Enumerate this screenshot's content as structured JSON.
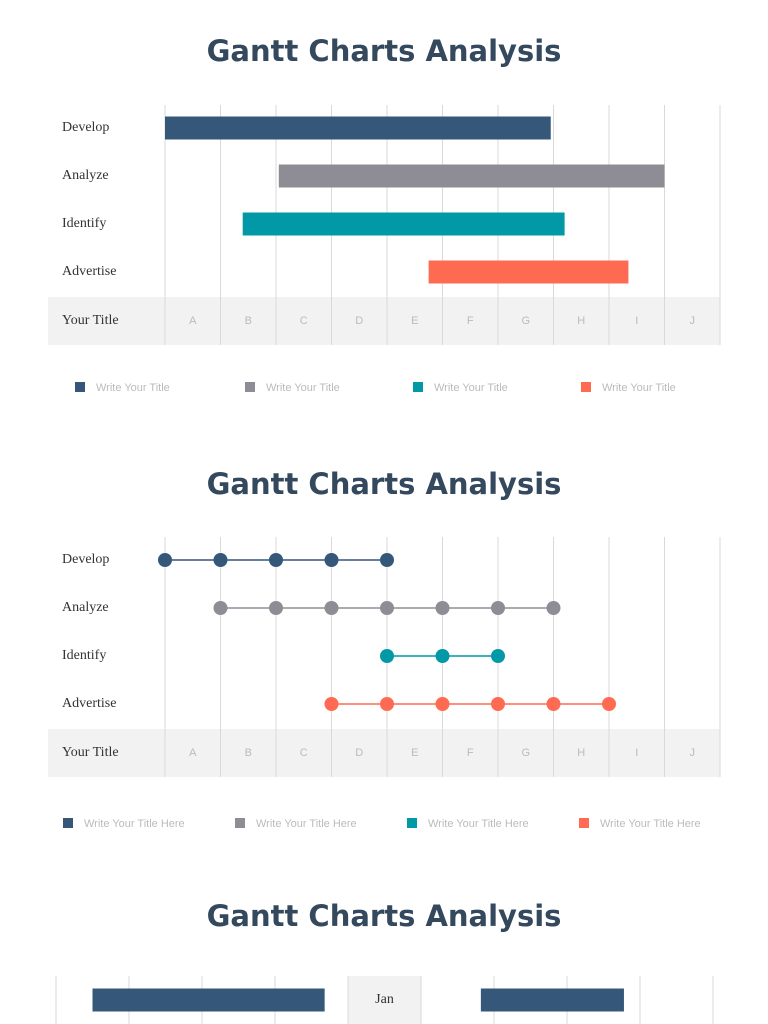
{
  "chart_data": [
    {
      "type": "gantt",
      "title": "Gantt Charts Analysis",
      "categories": [
        "A",
        "B",
        "C",
        "D",
        "E",
        "F",
        "G",
        "H",
        "I",
        "J"
      ],
      "xlim": [
        0,
        10
      ],
      "xticks": [
        0,
        1,
        2,
        3,
        4,
        5,
        6,
        7,
        8,
        9,
        10
      ],
      "footer_label": "Your Title",
      "tasks": [
        {
          "name": "Develop",
          "color": "#34577a",
          "start": 0,
          "end": 6.95
        },
        {
          "name": "Analyze",
          "color": "#8e8d96",
          "start": 2.05,
          "end": 9
        },
        {
          "name": "Identify",
          "color": "#0099a5",
          "start": 1.4,
          "end": 7.2
        },
        {
          "name": "Advertise",
          "color": "#ff6a52",
          "start": 4.75,
          "end": 8.35
        }
      ],
      "legend": [
        {
          "label": "Write Your Title",
          "color": "#34577a"
        },
        {
          "label": "Write Your Title",
          "color": "#8e8d96"
        },
        {
          "label": "Write Your Title",
          "color": "#0099a5"
        },
        {
          "label": "Write Your Title",
          "color": "#ff6a52"
        }
      ]
    },
    {
      "type": "dot-gantt",
      "title": "Gantt Charts Analysis",
      "categories": [
        "A",
        "B",
        "C",
        "D",
        "E",
        "F",
        "G",
        "H",
        "I",
        "J"
      ],
      "xlim": [
        0,
        10
      ],
      "xticks": [
        0,
        1,
        2,
        3,
        4,
        5,
        6,
        7,
        8,
        9,
        10
      ],
      "footer_label": "Your Title",
      "tasks": [
        {
          "name": "Develop",
          "color": "#34577a",
          "x": [
            0,
            1,
            2,
            3,
            4
          ]
        },
        {
          "name": "Analyze",
          "color": "#8e8d96",
          "x": [
            1,
            2,
            3,
            4,
            5,
            6,
            7
          ]
        },
        {
          "name": "Identify",
          "color": "#0099a5",
          "x": [
            4,
            5,
            6
          ]
        },
        {
          "name": "Advertise",
          "color": "#ff6a52",
          "x": [
            3,
            4,
            5,
            6,
            7,
            8
          ]
        }
      ],
      "legend": [
        {
          "label": "Write Your Title Here",
          "color": "#34577a"
        },
        {
          "label": "Write Your Title Here",
          "color": "#8e8d96"
        },
        {
          "label": "Write Your Title Here",
          "color": "#0099a5"
        },
        {
          "label": "Write Your Title Here",
          "color": "#ff6a52"
        }
      ]
    },
    {
      "type": "gantt",
      "title": "Gantt Charts Analysis",
      "categories": [
        null,
        null,
        null,
        null,
        "Jan",
        null,
        null,
        null,
        null
      ],
      "xlim": [
        0,
        9
      ],
      "xticks": [
        0,
        1,
        2,
        3,
        4,
        5,
        6,
        7,
        8,
        9
      ],
      "tasks": [
        {
          "color": "#34577a",
          "start": 0.5,
          "end": 3.68
        },
        {
          "color": "#34577a",
          "start": 5.82,
          "end": 7.78
        }
      ]
    }
  ]
}
